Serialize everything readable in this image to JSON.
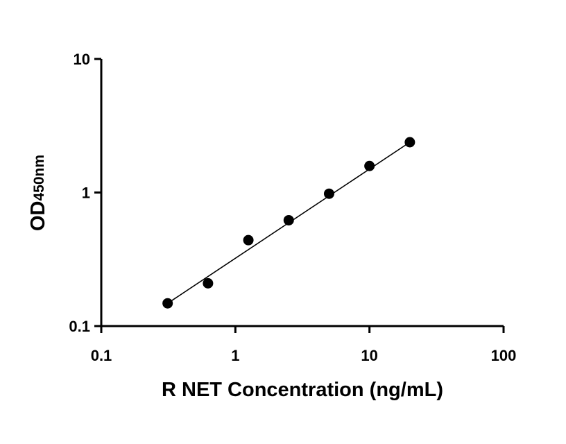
{
  "chart_data": {
    "type": "scatter",
    "xscale": "log",
    "yscale": "log",
    "xlabel": "R NET Concentration (ng/mL)",
    "ylabel_main": "OD",
    "ylabel_sub": "450nm",
    "xlim": [
      0.1,
      100
    ],
    "ylim": [
      0.1,
      10
    ],
    "x_ticks": [
      0.1,
      1,
      10,
      100
    ],
    "x_tick_labels": [
      "0.1",
      "1",
      "10",
      "100"
    ],
    "y_ticks": [
      0.1,
      1,
      10
    ],
    "y_tick_labels": [
      "0.1",
      "1",
      "10"
    ],
    "grid": false,
    "series": [
      {
        "x": [
          0.3125,
          0.625,
          1.25,
          2.5,
          5,
          10,
          20
        ],
        "y": [
          0.148,
          0.209,
          0.44,
          0.62,
          0.98,
          1.58,
          2.38
        ],
        "color": "#000000"
      }
    ],
    "fit_line": {
      "x": [
        0.3125,
        20
      ],
      "y": [
        0.148,
        2.38
      ]
    }
  }
}
